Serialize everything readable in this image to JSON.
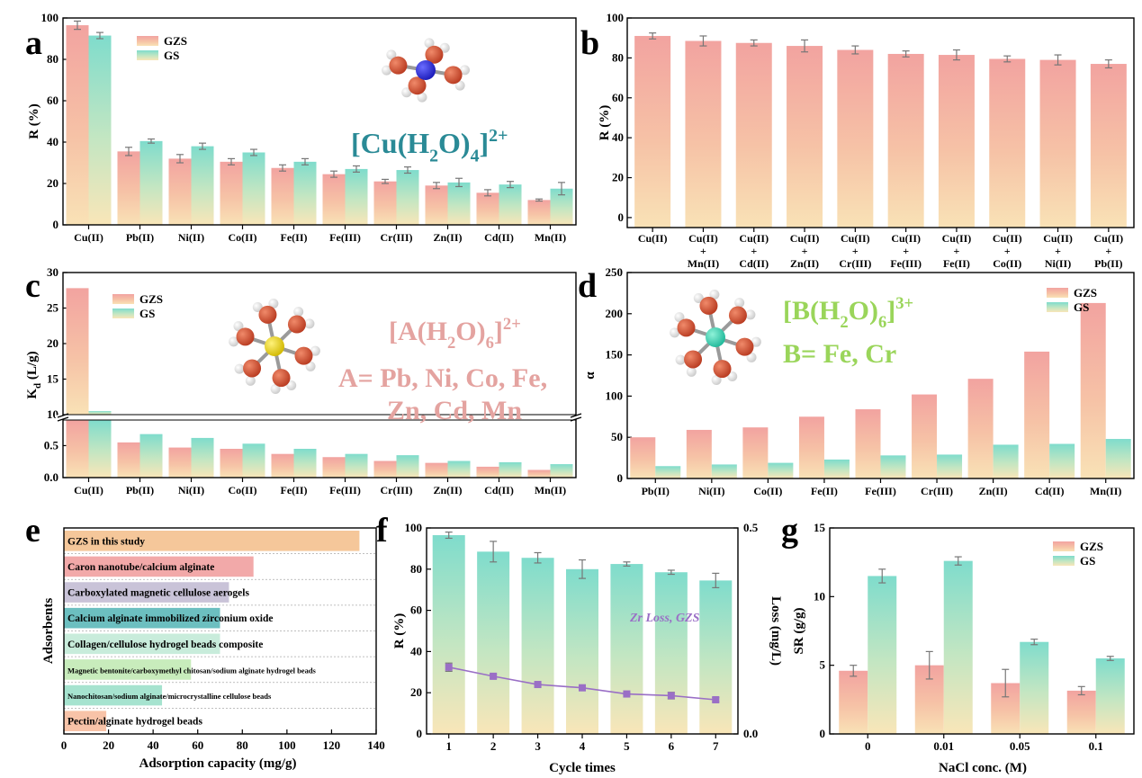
{
  "colors": {
    "gzs_top": "#f2a3a0",
    "gzs_bottom": "#f9dfb4",
    "gs_top": "#7fdccc",
    "gs_bottom": "#f9e6b8",
    "cu_complex_text": "#2a8a96",
    "a_complex_text": "#e4a3a0",
    "b_complex_text": "#9ad55a",
    "zr_loss": "#9a6fc6",
    "error_bar": "#777777"
  },
  "panels": {
    "a": {
      "letter": "a",
      "formula_base": "[Cu(H",
      "formula_sub1": "2",
      "formula_mid": "O)",
      "formula_sub2": "4",
      "formula_end": "]",
      "formula_sup": "2+",
      "atom_center": "blue-atom-icon"
    },
    "b": {
      "letter": "b"
    },
    "c": {
      "letter": "c",
      "formula_base": "[A(H",
      "formula_sub1": "2",
      "formula_mid": "O)",
      "formula_sub2": "6",
      "formula_end": "]",
      "formula_sup": "2+",
      "line2": "A= Pb, Ni, Co, Fe,",
      "line3": "Zn, Cd, Mn",
      "atom_center": "yellow-atom-icon"
    },
    "d": {
      "letter": "d",
      "formula_base": "[B(H",
      "formula_sub1": "2",
      "formula_mid": "O)",
      "formula_sub2": "6",
      "formula_end": "]",
      "formula_sup": "3+",
      "line2": "B= Fe, Cr",
      "atom_center": "teal-atom-icon"
    },
    "e": {
      "letter": "e"
    },
    "f": {
      "letter": "f"
    },
    "g": {
      "letter": "g"
    }
  },
  "chart_data": [
    {
      "id": "a",
      "type": "bar",
      "categories": [
        "Cu(II)",
        "Pb(II)",
        "Ni(II)",
        "Co(II)",
        "Fe(II)",
        "Fe(III)",
        "Cr(III)",
        "Zn(II)",
        "Cd(II)",
        "Mn(II)"
      ],
      "series": [
        {
          "name": "GZS",
          "values": [
            96.5,
            35.5,
            32,
            30.5,
            27.5,
            24.5,
            21,
            19,
            15.5,
            12
          ],
          "errors": [
            2,
            2,
            2,
            1.5,
            1.5,
            1.5,
            1,
            1.5,
            1.5,
            0.5
          ]
        },
        {
          "name": "GS",
          "values": [
            91.5,
            40.5,
            38,
            35,
            30.5,
            27,
            26.5,
            20.5,
            19.5,
            17.5
          ],
          "errors": [
            1.5,
            1,
            1.5,
            1.5,
            1.5,
            1.5,
            1.5,
            2,
            1.5,
            3
          ]
        }
      ],
      "ylabel": "R (%)",
      "ylim": [
        0,
        100
      ],
      "yticks": [
        0,
        20,
        40,
        60,
        80,
        100
      ],
      "legend": "top"
    },
    {
      "id": "b",
      "type": "bar",
      "categories": [
        [
          "Cu(II)"
        ],
        [
          "Cu(II)",
          "+",
          "Mn(II)"
        ],
        [
          "Cu(II)",
          "+",
          "Cd(II)"
        ],
        [
          "Cu(II)",
          "+",
          "Zn(II)"
        ],
        [
          "Cu(II)",
          "+",
          "Cr(III)"
        ],
        [
          "Cu(II)",
          "+",
          "Fe(III)"
        ],
        [
          "Cu(II)",
          "+",
          "Fe(II)"
        ],
        [
          "Cu(II)",
          "+",
          "Co(II)"
        ],
        [
          "Cu(II)",
          "+",
          "Ni(II)"
        ],
        [
          "Cu(II)",
          "+",
          "Pb(II)"
        ]
      ],
      "series": [
        {
          "name": "GZS",
          "values": [
            91,
            88.5,
            87.5,
            86,
            84,
            82,
            81.5,
            79.5,
            79,
            77
          ],
          "errors": [
            1.5,
            2.5,
            1.5,
            3,
            2,
            1.5,
            2.5,
            1.5,
            2.5,
            2
          ]
        }
      ],
      "ylabel": "R (%)",
      "ylim": [
        -5,
        100
      ],
      "yticks": [
        0,
        20,
        40,
        60,
        80,
        100
      ]
    },
    {
      "id": "c",
      "type": "bar",
      "categories": [
        "Cu(II)",
        "Pb(II)",
        "Ni(II)",
        "Co(II)",
        "Fe(II)",
        "Fe(III)",
        "Cr(III)",
        "Zn(II)",
        "Cd(II)",
        "Mn(II)"
      ],
      "series": [
        {
          "name": "GZS",
          "values": [
            27.8,
            0.55,
            0.47,
            0.45,
            0.37,
            0.32,
            0.26,
            0.23,
            0.17,
            0.12
          ]
        },
        {
          "name": "GS",
          "values": [
            10.5,
            0.68,
            0.62,
            0.53,
            0.45,
            0.37,
            0.35,
            0.26,
            0.24,
            0.21
          ]
        }
      ],
      "ylabel_main": "K",
      "ylabel_sub": "d",
      "ylabel_rest": " (L/g)",
      "broken_axis": {
        "lower": [
          0,
          0.9
        ],
        "upper": [
          10,
          30
        ]
      },
      "yticks_lower": [
        "0.0",
        "0.5"
      ],
      "yticks_upper": [
        "10",
        "15",
        "20",
        "25",
        "30"
      ],
      "legend": "top"
    },
    {
      "id": "d",
      "type": "bar",
      "categories": [
        "Pb(II)",
        "Ni(II)",
        "Co(II)",
        "Fe(II)",
        "Fe(III)",
        "Cr(III)",
        "Zn(II)",
        "Cd(II)",
        "Mn(II)"
      ],
      "series": [
        {
          "name": "GZS",
          "values": [
            50,
            59,
            62,
            75,
            84,
            102,
            121,
            154,
            213
          ]
        },
        {
          "name": "GS",
          "values": [
            15,
            17,
            19,
            23,
            28,
            29,
            41,
            42,
            48
          ]
        }
      ],
      "ylabel": "α",
      "ylim": [
        0,
        250
      ],
      "yticks": [
        0,
        50,
        100,
        150,
        200,
        250
      ],
      "legend": "top-right"
    },
    {
      "id": "e",
      "type": "bar",
      "orientation": "horizontal",
      "categories": [
        "GZS in this study",
        "Caron nanotube/calcium alginate",
        "Carboxylated magnetic cellulose aerogels",
        "Calcium alginate immobilized zirconium oxide",
        "Collagen/cellulose hydrogel beads composite",
        "Magnetic bentonite/carboxymethyl chitosan/sodium alginate hydrogel beads",
        "Nanochitosan/sodium alginate/microcrystalline cellulose beads",
        "Pectin/alginate hydrogel beads"
      ],
      "values": [
        132.5,
        85,
        74,
        70,
        70,
        57,
        44,
        19
      ],
      "bar_colors": [
        "#f5c79a",
        "#f2a9a9",
        "#c9c3d8",
        "#6cbfc0",
        "#c8ecdb",
        "#c8ecbc",
        "#a6e3cf",
        "#f8c3a8"
      ],
      "xlabel": "Adsorption capacity (mg/g)",
      "ylabel": "Adsorbents",
      "xlim": [
        0,
        140
      ],
      "xticks": [
        0,
        20,
        40,
        60,
        80,
        100,
        120,
        140
      ]
    },
    {
      "id": "f",
      "type": "bar",
      "categories": [
        "1",
        "2",
        "3",
        "4",
        "5",
        "6",
        "7"
      ],
      "series": [
        {
          "name": "R",
          "values": [
            96.5,
            88.5,
            85.5,
            80,
            82.5,
            78.5,
            74.5
          ],
          "errors": [
            1.5,
            5,
            2.5,
            4.5,
            1,
            1,
            3.5
          ]
        },
        {
          "name": "Zr Loss, GZS",
          "type": "line",
          "axis": "right",
          "values": [
            0.162,
            0.14,
            0.12,
            0.112,
            0.097,
            0.093,
            0.083
          ],
          "errors": [
            0.01,
            0.005,
            0.0015,
            0.005,
            0.0015,
            0.008,
            0.005
          ]
        }
      ],
      "xlabel": "Cycle times",
      "ylabel": "R (%)",
      "ylabel_right": "Loss (mg/L)",
      "ylim": [
        0,
        100
      ],
      "yticks": [
        0,
        20,
        40,
        60,
        80,
        100
      ],
      "ylim_right": [
        0.0,
        0.5
      ],
      "yticks_right": [
        "0.0",
        "0.5"
      ],
      "annotation": "Zr Loss, GZS"
    },
    {
      "id": "g",
      "type": "bar",
      "categories": [
        "0",
        "0.01",
        "0.05",
        "0.1"
      ],
      "series": [
        {
          "name": "GZS",
          "values": [
            4.6,
            5.0,
            3.7,
            3.15
          ],
          "errors": [
            0.4,
            1.0,
            1.0,
            0.3
          ]
        },
        {
          "name": "GS",
          "values": [
            11.5,
            12.6,
            6.7,
            5.5
          ],
          "errors": [
            0.5,
            0.3,
            0.2,
            0.15
          ]
        }
      ],
      "xlabel": "NaCl conc. (M)",
      "ylabel": "SR (g/g)",
      "ylim": [
        0,
        15
      ],
      "yticks": [
        0,
        5,
        10,
        15
      ],
      "legend": "top-right"
    }
  ]
}
